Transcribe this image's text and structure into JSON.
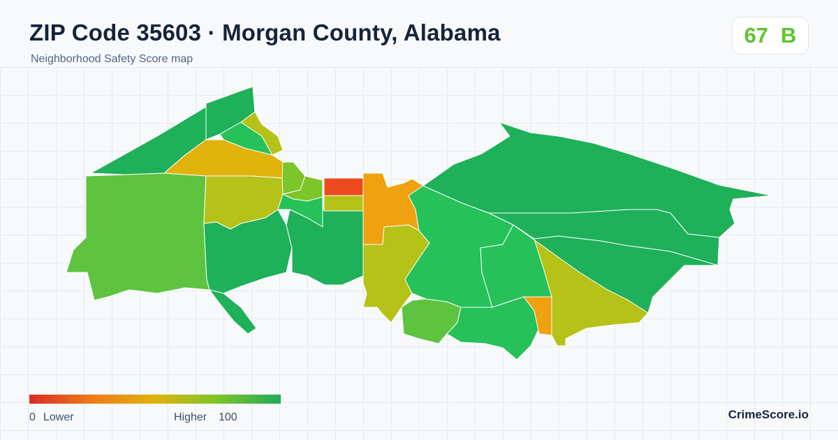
{
  "header": {
    "title": "ZIP Code 35603 · Morgan County, Alabama",
    "subtitle": "Neighborhood Safety Score map"
  },
  "score": {
    "value": "67",
    "grade": "B",
    "color": "#5ec42f"
  },
  "legend": {
    "min_value": "0",
    "min_label": "Lower",
    "max_label": "Higher",
    "max_value": "100",
    "colors": [
      "#d92c25",
      "#f07a18",
      "#e0b20c",
      "#7cc52a",
      "#1faa57"
    ]
  },
  "brand": "CrimeScore.io",
  "map": {
    "region_colors": {
      "dark_green": "#1fb05a",
      "green": "#26c159",
      "light_green": "#5ec440",
      "yellow_green": "#7cc52a",
      "olive": "#b5c217",
      "gold": "#e0b20c",
      "orange": "#f0a10f",
      "red": "#ec4a1e"
    }
  }
}
